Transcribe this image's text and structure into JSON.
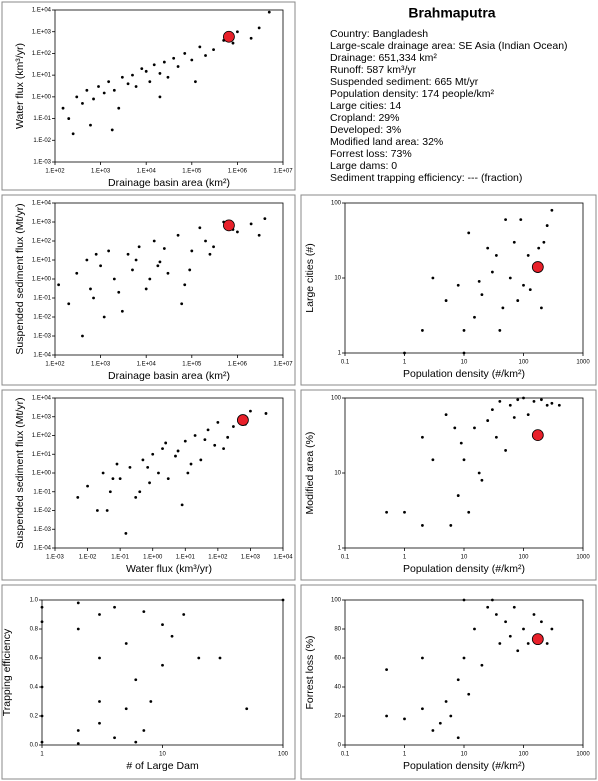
{
  "info": {
    "title": "Brahmaputra",
    "lines": [
      "Country:  Bangladesh",
      "Large-scale drainage area:  SE Asia (Indian Ocean)",
      "Drainage:  651,334 km²",
      "Runoff:  587 km³/yr",
      "Suspended sediment:  665 Mt/yr",
      "Population density:  174 people/km²",
      "Large cities:  14",
      "Cropland:  29%",
      "Developed:  3%",
      "Modified land area:  32%",
      "Forrest loss:  73%",
      "Large dams:  0",
      "Sediment trapping efficiency: --- (fraction)"
    ]
  },
  "chart_data": [
    {
      "type": "scatter",
      "x_label": "Drainage basin area (km²)",
      "y_label": "Water flux (km³/yr)",
      "xlog": true,
      "ylog": true,
      "color": "#000000",
      "highlight_color": "#e8202a",
      "xlim": [
        100,
        10000000
      ],
      "ylim": [
        0.001,
        10000
      ],
      "xticks": [
        {
          "value": 100,
          "label": "1.E+02"
        },
        {
          "value": 1000,
          "label": "1.E+03"
        },
        {
          "value": 10000,
          "label": "1.E+04"
        },
        {
          "value": 100000,
          "label": "1.E+05"
        },
        {
          "value": 1000000,
          "label": "1.E+06"
        },
        {
          "value": 10000000,
          "label": "1.E+07"
        }
      ],
      "yticks": [
        {
          "value": 0.001,
          "label": "1.E-03"
        },
        {
          "value": 0.01,
          "label": "1.E-02"
        },
        {
          "value": 0.1,
          "label": "1.E-01"
        },
        {
          "value": 1,
          "label": "1.E+00"
        },
        {
          "value": 10,
          "label": "1.E+01"
        },
        {
          "value": 100,
          "label": "1.E+02"
        },
        {
          "value": 1000,
          "label": "1.E+03"
        },
        {
          "value": 10000,
          "label": "1.E+04"
        }
      ],
      "x": [
        150,
        200,
        300,
        400,
        500,
        700,
        900,
        1200,
        1500,
        2000,
        2500,
        3000,
        4000,
        5000,
        6000,
        8000,
        10000,
        12000,
        15000,
        20000,
        25000,
        30000,
        40000,
        50000,
        70000,
        100000,
        150000,
        200000,
        300000,
        500000,
        800000,
        1000000,
        2000000,
        3000000,
        250,
        600,
        1800,
        20000,
        120000,
        5000000
      ],
      "values": [
        0.3,
        0.1,
        1,
        0.5,
        2,
        0.8,
        3,
        1.5,
        5,
        2,
        0.3,
        8,
        4,
        10,
        3,
        20,
        15,
        5,
        30,
        12,
        40,
        8,
        60,
        25,
        100,
        50,
        200,
        80,
        150,
        400,
        300,
        1000,
        500,
        1500,
        0.02,
        0.05,
        0.03,
        1,
        5,
        8000
      ],
      "highlight": {
        "x": 651334,
        "value": 587
      }
    },
    {
      "type": "scatter",
      "x_label": "Drainage basin area (km²)",
      "y_label": "Suspended sediment flux (Mt/yr)",
      "xlog": true,
      "ylog": true,
      "color": "#000000",
      "highlight_color": "#e8202a",
      "xlim": [
        100,
        10000000
      ],
      "ylim": [
        0.0001,
        10000
      ],
      "xticks": [
        {
          "value": 100,
          "label": "1.E+02"
        },
        {
          "value": 1000,
          "label": "1.E+03"
        },
        {
          "value": 10000,
          "label": "1.E+04"
        },
        {
          "value": 100000,
          "label": "1.E+05"
        },
        {
          "value": 1000000,
          "label": "1.E+06"
        },
        {
          "value": 10000000,
          "label": "1.E+07"
        }
      ],
      "yticks": [
        {
          "value": 0.0001,
          "label": "1.E-04"
        },
        {
          "value": 0.001,
          "label": "1.E-03"
        },
        {
          "value": 0.01,
          "label": "1.E-02"
        },
        {
          "value": 0.1,
          "label": "1.E-01"
        },
        {
          "value": 1,
          "label": "1.E+00"
        },
        {
          "value": 10,
          "label": "1.E+01"
        },
        {
          "value": 100,
          "label": "1.E+02"
        },
        {
          "value": 1000,
          "label": "1.E+03"
        },
        {
          "value": 10000,
          "label": "1.E+04"
        }
      ],
      "x": [
        120,
        200,
        300,
        500,
        700,
        1000,
        1500,
        2000,
        3000,
        4000,
        5000,
        7000,
        10000,
        15000,
        20000,
        30000,
        50000,
        70000,
        100000,
        150000,
        200000,
        300000,
        500000,
        1000000,
        2000000,
        4000000,
        400,
        800,
        2500,
        6000,
        12000,
        25000,
        60000,
        90000,
        250000,
        800000,
        1200,
        600,
        18000,
        3000000
      ],
      "values": [
        0.5,
        0.05,
        2,
        10,
        0.1,
        5,
        30,
        1,
        0.02,
        20,
        3,
        50,
        0.3,
        100,
        8,
        2,
        200,
        0.5,
        30,
        500,
        100,
        50,
        1000,
        300,
        800,
        1500,
        0.001,
        20,
        0.2,
        10,
        1,
        40,
        0.05,
        3,
        20,
        400,
        0.01,
        0.3,
        5,
        200
      ],
      "highlight": {
        "x": 651334,
        "value": 665
      }
    },
    {
      "type": "scatter",
      "x_label": "Population density (#/km²)",
      "y_label": "Large cities (#)",
      "xlog": true,
      "ylog": true,
      "color": "#000000",
      "highlight_color": "#e8202a",
      "xlim": [
        0.1,
        1000
      ],
      "ylim": [
        1,
        100
      ],
      "xticks": [
        0.1,
        1,
        10,
        100,
        1000
      ],
      "yticks": [
        1,
        10,
        100
      ],
      "x": [
        2,
        5,
        8,
        10,
        12,
        15,
        20,
        25,
        30,
        40,
        50,
        60,
        70,
        80,
        100,
        120,
        150,
        200,
        250,
        300,
        3,
        10,
        18,
        35,
        45,
        90,
        130,
        180,
        220,
        1
      ],
      "values": [
        2,
        5,
        8,
        1,
        40,
        3,
        6,
        25,
        12,
        2,
        60,
        10,
        30,
        5,
        8,
        20,
        15,
        4,
        50,
        80,
        10,
        2,
        9,
        20,
        4,
        60,
        7,
        25,
        30,
        1
      ],
      "highlight": {
        "x": 174,
        "value": 14
      }
    },
    {
      "type": "scatter",
      "x_label": "Water flux (km³/yr)",
      "y_label": "Suspended sediment flux (Mt/yr)",
      "xlog": true,
      "ylog": true,
      "color": "#000000",
      "highlight_color": "#e8202a",
      "xlim": [
        0.001,
        10000
      ],
      "ylim": [
        0.0001,
        10000
      ],
      "xticks": [
        {
          "value": 0.001,
          "label": "1.E-03"
        },
        {
          "value": 0.01,
          "label": "1.E-02"
        },
        {
          "value": 0.1,
          "label": "1.E-01"
        },
        {
          "value": 1,
          "label": "1.E+00"
        },
        {
          "value": 10,
          "label": "1.E+01"
        },
        {
          "value": 100,
          "label": "1.E+02"
        },
        {
          "value": 1000,
          "label": "1.E+03"
        },
        {
          "value": 10000,
          "label": "1.E+04"
        }
      ],
      "yticks": [
        {
          "value": 0.0001,
          "label": "1.E-04"
        },
        {
          "value": 0.001,
          "label": "1.E-03"
        },
        {
          "value": 0.01,
          "label": "1.E-02"
        },
        {
          "value": 0.1,
          "label": "1.E-01"
        },
        {
          "value": 1,
          "label": "1.E+00"
        },
        {
          "value": 10,
          "label": "1.E+01"
        },
        {
          "value": 100,
          "label": "1.E+02"
        },
        {
          "value": 1000,
          "label": "1.E+03"
        },
        {
          "value": 10000,
          "label": "1.E+04"
        }
      ],
      "x": [
        0.005,
        0.01,
        0.02,
        0.03,
        0.05,
        0.08,
        0.1,
        0.15,
        0.2,
        0.3,
        0.5,
        0.8,
        1,
        1.5,
        2,
        3,
        5,
        8,
        10,
        15,
        20,
        30,
        50,
        80,
        100,
        200,
        300,
        500,
        1000,
        3000,
        0.04,
        0.06,
        0.4,
        0.7,
        2.5,
        6,
        12,
        40,
        150,
        700
      ],
      "values": [
        0.05,
        0.2,
        0.01,
        1,
        0.1,
        3,
        0.5,
        0.0006,
        2,
        0.05,
        5,
        0.3,
        10,
        1,
        20,
        0.5,
        8,
        0.02,
        50,
        3,
        100,
        5,
        200,
        30,
        500,
        80,
        300,
        1000,
        2000,
        1500,
        0.01,
        0.5,
        0.1,
        2,
        40,
        15,
        1,
        60,
        20,
        400
      ],
      "highlight": {
        "x": 587,
        "value": 665
      }
    },
    {
      "type": "scatter",
      "x_label": "Population density (#/km²)",
      "y_label": "Modified area (%)",
      "xlog": true,
      "ylog": true,
      "color": "#000000",
      "highlight_color": "#e8202a",
      "xlim": [
        0.1,
        1000
      ],
      "ylim": [
        1,
        100
      ],
      "xticks": [
        0.1,
        1,
        10,
        100,
        1000
      ],
      "yticks": [
        1,
        10,
        100
      ],
      "x": [
        0.5,
        1,
        2,
        2,
        3,
        5,
        6,
        8,
        10,
        12,
        15,
        20,
        25,
        30,
        40,
        50,
        60,
        80,
        100,
        120,
        150,
        200,
        250,
        300,
        7,
        18,
        35,
        70,
        9,
        400
      ],
      "values": [
        3,
        3,
        2,
        30,
        15,
        60,
        2,
        5,
        15,
        3,
        40,
        8,
        50,
        70,
        90,
        20,
        80,
        95,
        100,
        60,
        90,
        95,
        80,
        85,
        40,
        10,
        30,
        55,
        25,
        80
      ],
      "highlight": {
        "x": 174,
        "value": 32
      }
    },
    {
      "type": "scatter",
      "x_label": "# of Large Dam",
      "y_label": "Trapping efficiency",
      "xlog": true,
      "ylog": false,
      "color": "#000000",
      "xlim": [
        1,
        100
      ],
      "ylim": [
        0,
        1
      ],
      "xticks": [
        1,
        10,
        100
      ],
      "yticks": [
        {
          "value": 0,
          "label": "0.0"
        },
        0.2,
        0.4,
        0.6,
        0.8,
        {
          "value": 1,
          "label": "1.0"
        }
      ],
      "x": [
        1,
        1,
        1,
        1,
        1,
        2,
        2,
        2,
        2,
        3,
        3,
        3,
        3,
        4,
        4,
        5,
        5,
        6,
        6,
        7,
        7,
        8,
        10,
        10,
        12,
        15,
        20,
        30,
        50,
        100
      ],
      "values": [
        0.95,
        0.85,
        0.4,
        0.2,
        0.02,
        0.98,
        0.8,
        0.1,
        0.01,
        0.9,
        0.6,
        0.3,
        0.15,
        0.95,
        0.05,
        0.7,
        0.25,
        0.02,
        0.45,
        0.92,
        0.1,
        0.3,
        0.83,
        0.55,
        0.75,
        0.9,
        0.6,
        0.6,
        0.25,
        1
      ]
    },
    {
      "type": "scatter",
      "x_label": "Population density (#/km²)",
      "y_label": "Forrest loss (%)",
      "xlog": true,
      "ylog": false,
      "color": "#000000",
      "highlight_color": "#e8202a",
      "xlim": [
        0.1,
        1000
      ],
      "ylim": [
        0,
        100
      ],
      "xticks": [
        0.1,
        1,
        10,
        100,
        1000
      ],
      "yticks": [
        0,
        20,
        40,
        60,
        80,
        100
      ],
      "x": [
        0.5,
        0.5,
        1,
        2,
        2,
        3,
        4,
        5,
        6,
        8,
        10,
        10,
        12,
        15,
        20,
        25,
        30,
        35,
        40,
        50,
        60,
        70,
        80,
        100,
        120,
        150,
        200,
        250,
        300,
        8
      ],
      "values": [
        52,
        20,
        18,
        60,
        25,
        10,
        15,
        30,
        20,
        45,
        100,
        60,
        35,
        80,
        55,
        95,
        100,
        90,
        70,
        85,
        75,
        95,
        65,
        80,
        70,
        90,
        85,
        70,
        80,
        5
      ],
      "highlight": {
        "x": 174,
        "value": 73
      }
    }
  ]
}
